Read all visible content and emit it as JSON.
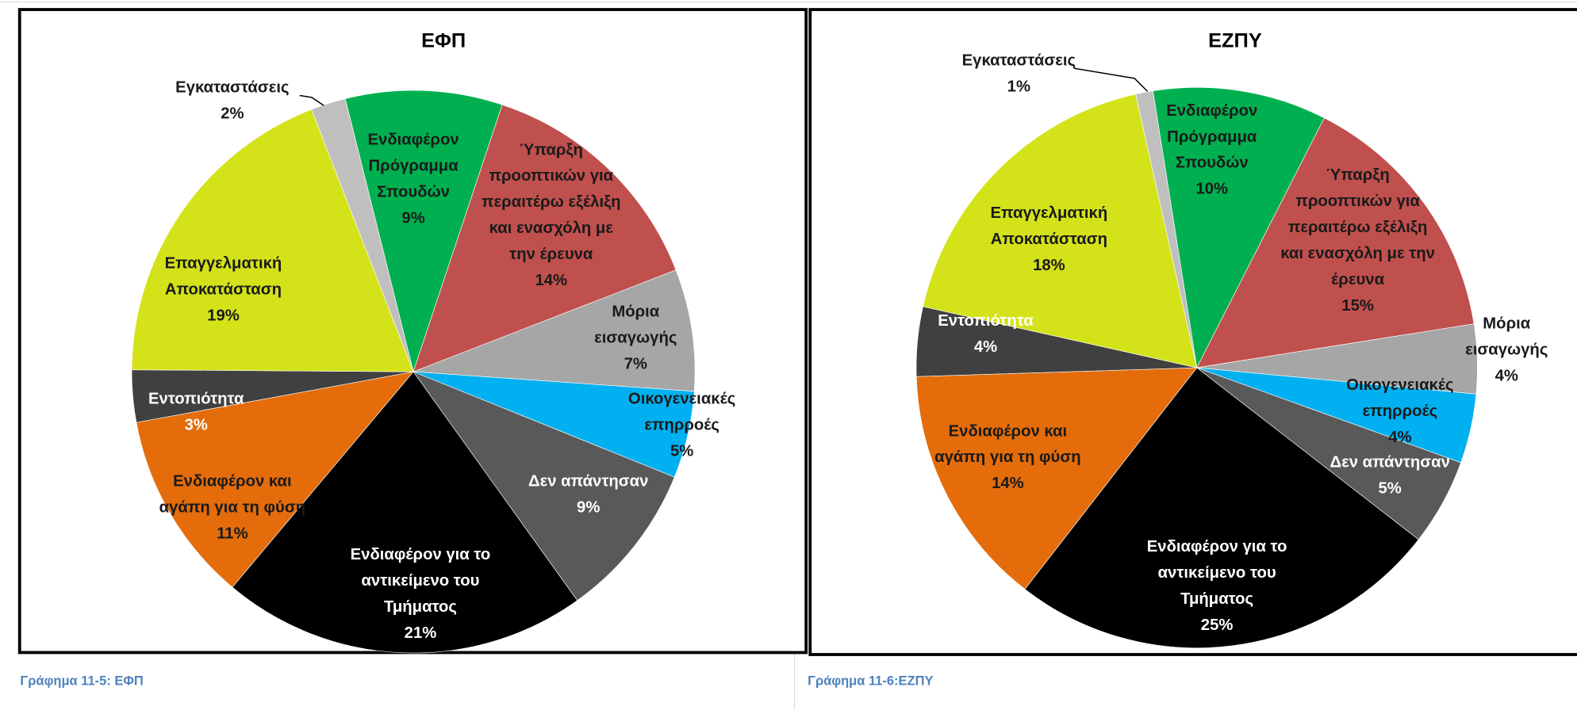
{
  "chart_data": [
    {
      "type": "pie",
      "title": "ΕΦΠ",
      "categories": [
        "Ενδιαφέρον Πρόγραμμα Σπουδών",
        "Ύπαρξη προοπτικών για περαιτέρω εξέλιξη και ενασχόλη με την έρευνα",
        "Μόρια εισαγωγής",
        "Οικογενειακές επηρροές",
        "Δεν απάντησαν",
        "Ενδιαφέρον για το αντικείμενο του Τμήματος",
        "Ενδιαφέρον και αγάπη για τη φύση",
        "Εντοπιότητα",
        "Επαγγελματική Αποκατάσταση",
        "Εγκαταστάσεις"
      ],
      "values": [
        9,
        14,
        7,
        5,
        9,
        21,
        11,
        3,
        19,
        2
      ],
      "value_labels": [
        "9%",
        "14%",
        "7%",
        "5%",
        "9%",
        "21%",
        "11%",
        "3%",
        "19%",
        "2%"
      ],
      "colors": [
        "#00b050",
        "#c0504d",
        "#a6a6a6",
        "#00b0f0",
        "#595959",
        "#000000",
        "#e46c0a",
        "#404040",
        "#d4e21a",
        "#bfbfbf"
      ]
    },
    {
      "type": "pie",
      "title": "ΕΖΠΥ",
      "categories": [
        "Ενδιαφέρον Πρόγραμμα Σπουδών",
        "Ύπαρξη προοπτικών για περαιτέρω εξέλιξη και ενασχόλη με την έρευνα",
        "Μόρια εισαγωγής",
        "Οικογενειακές επηρροές",
        "Δεν απάντησαν",
        "Ενδιαφέρον για το αντικείμενο του Τμήματος",
        "Ενδιαφέρον και αγάπη για τη φύση",
        "Εντοπιότητα",
        "Επαγγελματική Αποκατάσταση",
        "Εγκαταστάσεις"
      ],
      "values": [
        10,
        15,
        4,
        4,
        5,
        25,
        14,
        4,
        18,
        1
      ],
      "value_labels": [
        "10%",
        "15%",
        "4%",
        "4%",
        "5%",
        "25%",
        "14%",
        "4%",
        "18%",
        "1%"
      ],
      "colors": [
        "#00b050",
        "#c0504d",
        "#a6a6a6",
        "#00b0f0",
        "#595959",
        "#000000",
        "#e46c0a",
        "#404040",
        "#d4e21a",
        "#bfbfbf"
      ]
    }
  ],
  "captions": [
    "Γράφημα 11-5: ΕΦΠ",
    "Γράφημα 11-6:ΕΖΠΥ"
  ]
}
